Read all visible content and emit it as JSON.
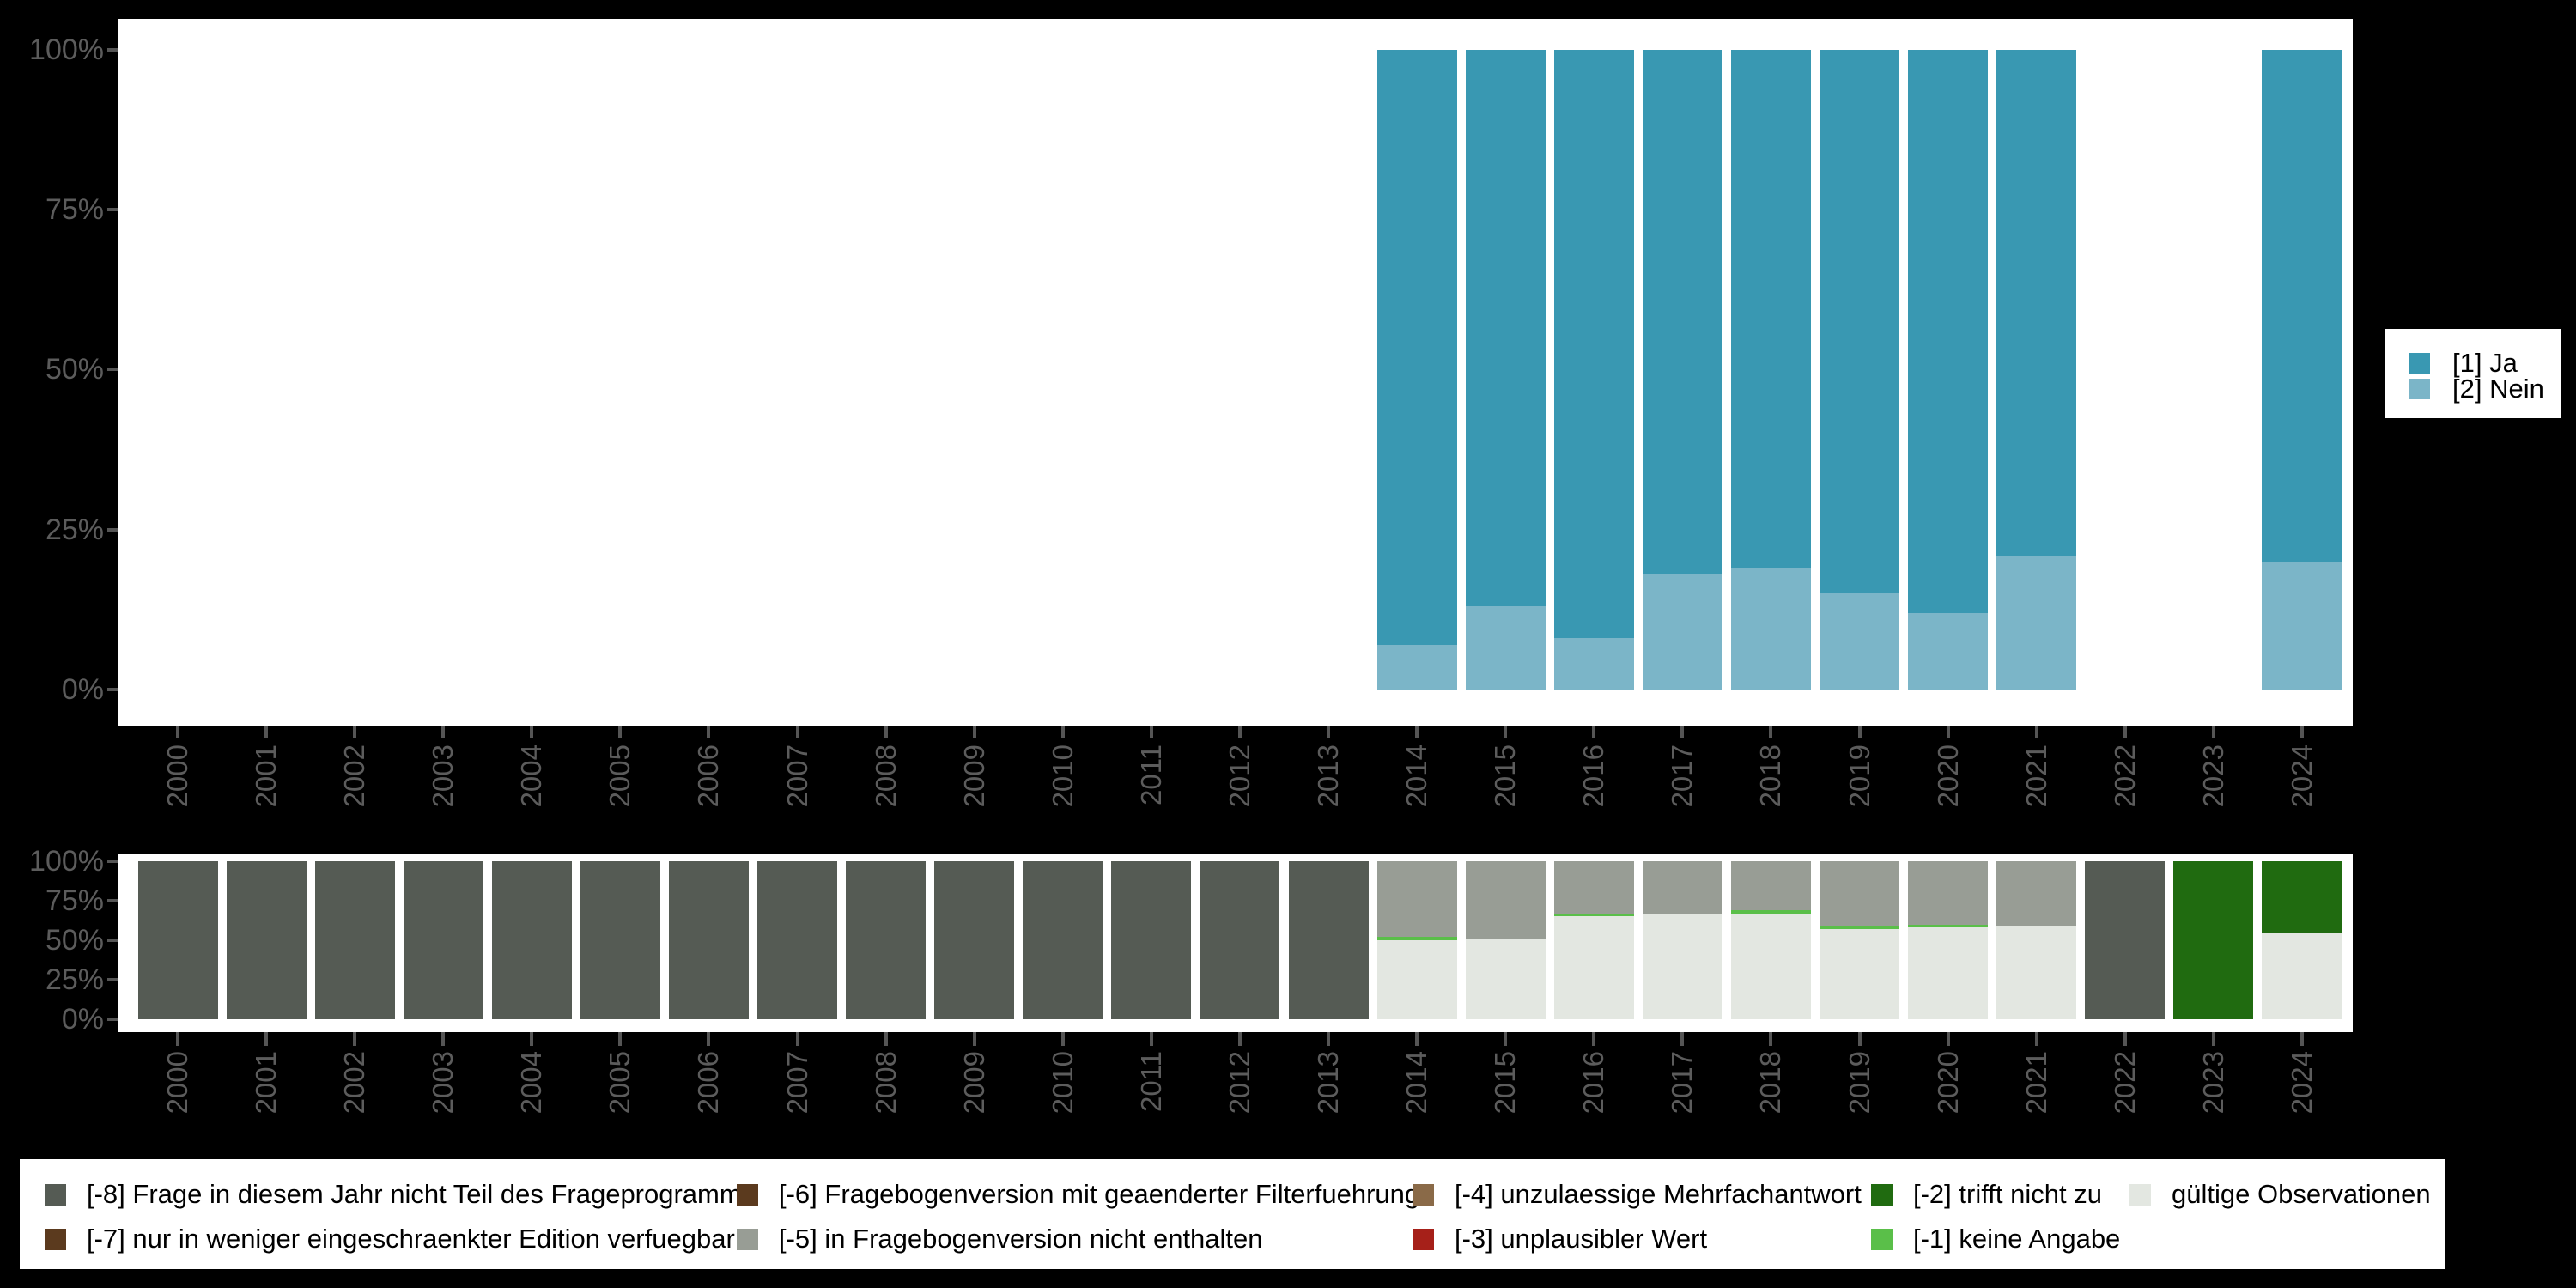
{
  "background": "#000000",
  "panel_background": "#ffffff",
  "axis": {
    "text_color": "#5c5c5c",
    "tick_color": "#555555"
  },
  "years": [
    "2000",
    "2001",
    "2002",
    "2003",
    "2004",
    "2005",
    "2006",
    "2007",
    "2008",
    "2009",
    "2010",
    "2011",
    "2012",
    "2013",
    "2014",
    "2015",
    "2016",
    "2017",
    "2018",
    "2019",
    "2020",
    "2021",
    "2022",
    "2023",
    "2024"
  ],
  "y_tick_labels": [
    "100%",
    "75%",
    "50%",
    "25%",
    "0%"
  ],
  "top_legend": {
    "items": [
      {
        "label": "[1] Ja",
        "color": "#3998b2"
      },
      {
        "label": "[2] Nein",
        "color": "#7bb5c8"
      }
    ]
  },
  "bottom_legend": {
    "columns": [
      {
        "items": [
          {
            "label": "[-8] Frage in diesem Jahr nicht Teil des Frageprogramms",
            "color": "#555b54"
          },
          {
            "label": "[-7] nur in weniger eingeschraenkter Edition verfuegbar",
            "color": "#5b3a1e"
          }
        ]
      },
      {
        "items": [
          {
            "label": "[-6] Fragebogenversion mit geaenderter Filterfuehrung",
            "color": "#5b3a1e"
          },
          {
            "label": "[-5] in Fragebogenversion nicht enthalten",
            "color": "#989d95"
          }
        ]
      },
      {
        "items": [
          {
            "label": "[-4] unzulaessige Mehrfachantwort",
            "color": "#8a6a48"
          },
          {
            "label": "[-3] unplausibler Wert",
            "color": "#a62019"
          }
        ]
      },
      {
        "items": [
          {
            "label": "[-2] trifft nicht zu",
            "color": "#206b10"
          },
          {
            "label": "[-1] keine Angabe",
            "color": "#5abf49"
          }
        ]
      },
      {
        "items": [
          {
            "label": "gültige Observationen",
            "color": "#e3e7e1"
          }
        ]
      }
    ]
  },
  "chart_data": [
    {
      "type": "bar",
      "stacked": true,
      "title": "",
      "xlabel": "",
      "ylabel": "",
      "categories": [
        "2000",
        "2001",
        "2002",
        "2003",
        "2004",
        "2005",
        "2006",
        "2007",
        "2008",
        "2009",
        "2010",
        "2011",
        "2012",
        "2013",
        "2014",
        "2015",
        "2016",
        "2017",
        "2018",
        "2019",
        "2020",
        "2021",
        "2022",
        "2023",
        "2024"
      ],
      "ylim": [
        0,
        100
      ],
      "ytick_labels": [
        "0%",
        "25%",
        "50%",
        "75%",
        "100%"
      ],
      "grid": false,
      "legend_position": "right",
      "series": [
        {
          "name": "[1] Ja",
          "color": "#3998b2",
          "values": [
            null,
            null,
            null,
            null,
            null,
            null,
            null,
            null,
            null,
            null,
            null,
            null,
            null,
            null,
            93,
            87,
            92,
            82,
            81,
            85,
            88,
            79,
            null,
            null,
            80
          ]
        },
        {
          "name": "[2] Nein",
          "color": "#7bb5c8",
          "values": [
            null,
            null,
            null,
            null,
            null,
            null,
            null,
            null,
            null,
            null,
            null,
            null,
            null,
            null,
            7,
            13,
            8,
            18,
            19,
            15,
            12,
            21,
            null,
            null,
            20
          ]
        }
      ]
    },
    {
      "type": "bar",
      "stacked": true,
      "title": "",
      "xlabel": "",
      "ylabel": "",
      "categories": [
        "2000",
        "2001",
        "2002",
        "2003",
        "2004",
        "2005",
        "2006",
        "2007",
        "2008",
        "2009",
        "2010",
        "2011",
        "2012",
        "2013",
        "2014",
        "2015",
        "2016",
        "2017",
        "2018",
        "2019",
        "2020",
        "2021",
        "2022",
        "2023",
        "2024"
      ],
      "ylim": [
        0,
        100
      ],
      "ytick_labels": [
        "0%",
        "25%",
        "50%",
        "75%",
        "100%"
      ],
      "grid": false,
      "legend_position": "bottom",
      "series": [
        {
          "name": "[-8] Frage in diesem Jahr nicht Teil des Frageprogramms",
          "color": "#555b54",
          "values": [
            100,
            100,
            100,
            100,
            100,
            100,
            100,
            100,
            100,
            100,
            100,
            100,
            100,
            100,
            0,
            0,
            0,
            0,
            0,
            0,
            0,
            0,
            100,
            0,
            0
          ]
        },
        {
          "name": "[-7] nur in weniger eingeschraenkter Edition verfuegbar",
          "color": "#5b3a1e",
          "values": [
            0,
            0,
            0,
            0,
            0,
            0,
            0,
            0,
            0,
            0,
            0,
            0,
            0,
            0,
            0,
            0,
            0,
            0,
            0,
            0,
            0,
            0,
            0,
            0,
            0
          ]
        },
        {
          "name": "[-6] Fragebogenversion mit geaenderter Filterfuehrung",
          "color": "#5b3a1e",
          "values": [
            0,
            0,
            0,
            0,
            0,
            0,
            0,
            0,
            0,
            0,
            0,
            0,
            0,
            0,
            0,
            0,
            0,
            0,
            0,
            0,
            0,
            0,
            0,
            0,
            0
          ]
        },
        {
          "name": "[-5] in Fragebogenversion nicht enthalten",
          "color": "#989d95",
          "values": [
            0,
            0,
            0,
            0,
            0,
            0,
            0,
            0,
            0,
            0,
            0,
            0,
            0,
            0,
            48,
            49,
            33,
            33,
            31,
            41,
            40,
            41,
            0,
            0,
            0
          ]
        },
        {
          "name": "[-4] unzulaessige Mehrfachantwort",
          "color": "#8a6a48",
          "values": [
            0,
            0,
            0,
            0,
            0,
            0,
            0,
            0,
            0,
            0,
            0,
            0,
            0,
            0,
            0,
            0,
            0,
            0,
            0,
            0,
            0,
            0,
            0,
            0,
            0
          ]
        },
        {
          "name": "[-3] unplausibler Wert",
          "color": "#a62019",
          "values": [
            0,
            0,
            0,
            0,
            0,
            0,
            0,
            0,
            0,
            0,
            0,
            0,
            0,
            0,
            0,
            0,
            0,
            0,
            0,
            0,
            0,
            0,
            0,
            0,
            0
          ]
        },
        {
          "name": "[-2] trifft nicht zu",
          "color": "#206b10",
          "values": [
            0,
            0,
            0,
            0,
            0,
            0,
            0,
            0,
            0,
            0,
            0,
            0,
            0,
            0,
            0,
            0,
            0,
            0,
            0,
            0,
            0,
            0,
            0,
            100,
            45
          ]
        },
        {
          "name": "[-1] keine Angabe",
          "color": "#5abf49",
          "values": [
            0,
            0,
            0,
            0,
            0,
            0,
            0,
            0,
            0,
            0,
            0,
            0,
            0,
            0,
            2,
            0,
            2,
            0,
            2,
            2,
            2,
            0,
            0,
            0,
            0
          ]
        },
        {
          "name": "gültige Observationen",
          "color": "#e3e7e1",
          "values": [
            0,
            0,
            0,
            0,
            0,
            0,
            0,
            0,
            0,
            0,
            0,
            0,
            0,
            0,
            50,
            51,
            65,
            67,
            67,
            57,
            58,
            59,
            0,
            0,
            55
          ]
        }
      ]
    }
  ]
}
